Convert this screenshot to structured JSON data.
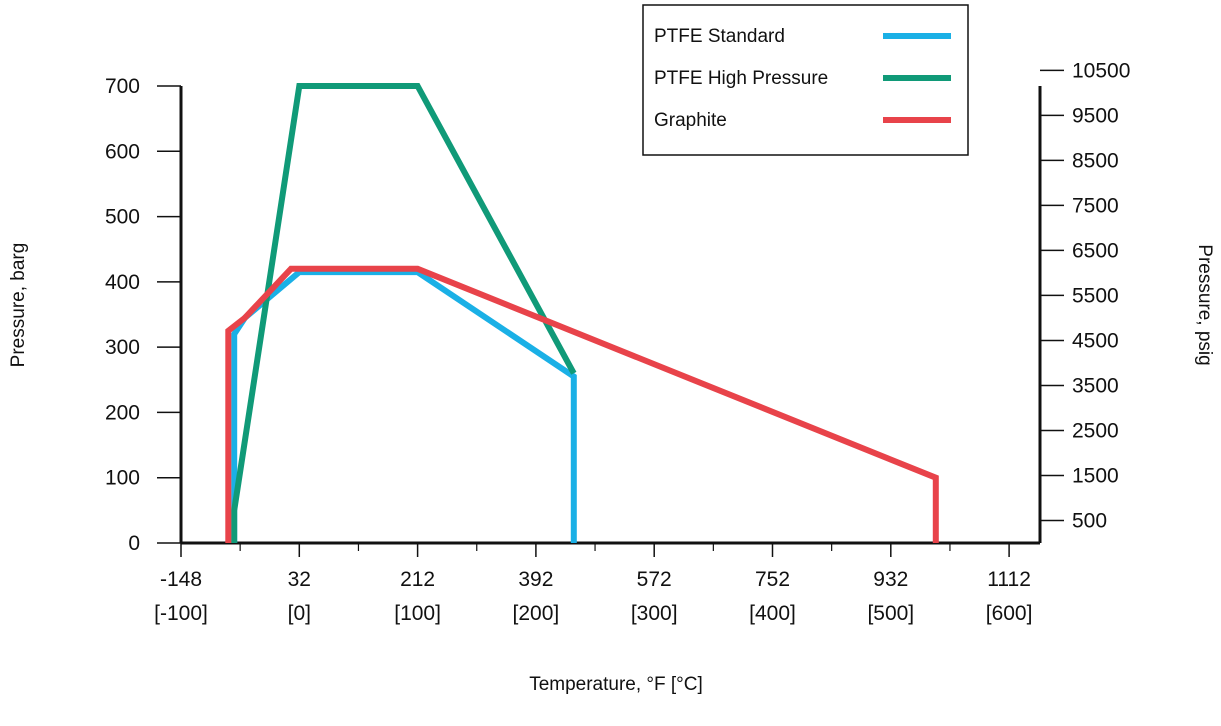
{
  "chart_data": {
    "type": "line",
    "xlabel": "Temperature, °F [°C]",
    "ylabel": "Pressure, barg",
    "y2label": "Pressure, psig",
    "x_unit": "°C",
    "xlim": [
      -100,
      600
    ],
    "ylim": [
      0,
      700
    ],
    "x_ticks": [
      {
        "value": -100,
        "f": "-148",
        "c": "[-100]"
      },
      {
        "value": 0,
        "f": "32",
        "c": "[0]"
      },
      {
        "value": 100,
        "f": "212",
        "c": "[100]"
      },
      {
        "value": 200,
        "f": "392",
        "c": "[200]"
      },
      {
        "value": 300,
        "f": "572",
        "c": "[300]"
      },
      {
        "value": 400,
        "f": "752",
        "c": "[400]"
      },
      {
        "value": 500,
        "f": "932",
        "c": "[500]"
      },
      {
        "value": 600,
        "f": "1112",
        "c": "[600]"
      }
    ],
    "x_minor_ticks": [
      -50,
      50,
      150,
      250,
      350,
      450,
      550
    ],
    "y_ticks": [
      0,
      100,
      200,
      300,
      400,
      500,
      600,
      700
    ],
    "y2_ticks": [
      500,
      1500,
      2500,
      3500,
      4500,
      5500,
      6500,
      7500,
      8500,
      9500,
      10500
    ],
    "y2_psig_per_barg": 14.5038,
    "legend_position": "top-right",
    "series": [
      {
        "name": "PTFE Standard",
        "color": "#1ab0e6",
        "points": [
          [
            -55,
            0
          ],
          [
            -55,
            320
          ],
          [
            -46,
            345
          ],
          [
            0,
            415
          ],
          [
            100,
            415
          ],
          [
            232,
            255
          ],
          [
            232,
            0
          ]
        ]
      },
      {
        "name": "PTFE High Pressure",
        "color": "#109a78",
        "points": [
          [
            -55,
            0
          ],
          [
            -55,
            50
          ],
          [
            0,
            700
          ],
          [
            100,
            700
          ],
          [
            232,
            260
          ]
        ]
      },
      {
        "name": "Graphite",
        "color": "#e8434a",
        "points": [
          [
            -60,
            0
          ],
          [
            -60,
            325
          ],
          [
            -46,
            345
          ],
          [
            -7,
            420
          ],
          [
            100,
            420
          ],
          [
            538,
            100
          ],
          [
            538,
            0
          ]
        ]
      }
    ]
  }
}
